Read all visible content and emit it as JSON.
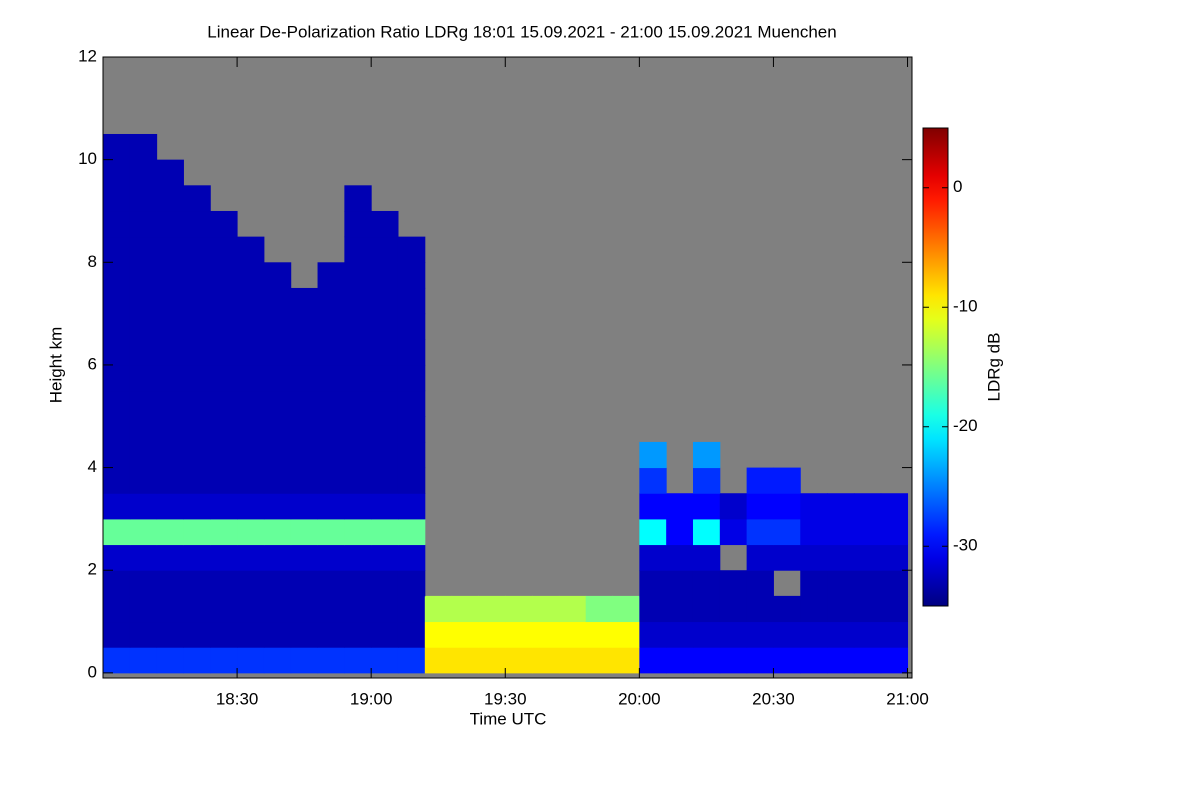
{
  "chart_data": {
    "type": "heatmap",
    "title": "Linear De-Polarization Ratio LDRg   18:01 15.09.2021 - 21:00 15.09.2021 Muenchen",
    "xlabel": "Time UTC",
    "ylabel": "Height km",
    "colorbar_label": "LDRg dB",
    "xlim": [
      0,
      181
    ],
    "xticks": [
      {
        "value": 30,
        "label": "18:30"
      },
      {
        "value": 60,
        "label": "19:00"
      },
      {
        "value": 90,
        "label": "19:30"
      },
      {
        "value": 120,
        "label": "20:00"
      },
      {
        "value": 150,
        "label": "20:30"
      },
      {
        "value": 180,
        "label": "21:00"
      }
    ],
    "ylim": [
      -0.1,
      12
    ],
    "yticks": [
      0,
      2,
      4,
      6,
      8,
      10,
      12
    ],
    "clim": [
      -35,
      5
    ],
    "cticks": [
      -30,
      -20,
      -10,
      0
    ],
    "colormap": "jet",
    "missing_color": "#808080",
    "xbins": [
      0,
      6,
      12,
      18,
      24,
      30,
      36,
      42,
      48,
      54,
      60,
      66,
      72,
      78,
      84,
      90,
      96,
      102,
      108,
      114,
      120,
      126,
      132,
      138,
      144,
      150,
      156,
      162,
      168,
      174,
      180
    ],
    "ybins": [
      0,
      0.5,
      1,
      1.5,
      2,
      2.5,
      3,
      3.5,
      4,
      4.5,
      5,
      5.5,
      6,
      6.5,
      7,
      7.5,
      8,
      8.5,
      9,
      9.5,
      10,
      10.5,
      11,
      11.5,
      12
    ],
    "z": [
      [
        -28,
        -28,
        -28,
        -28,
        -28,
        -28,
        -28,
        -28,
        -28,
        -28,
        -28,
        -28,
        -9,
        -9,
        -9,
        -9,
        -9,
        -9,
        -9,
        -9,
        -30,
        -30,
        -30,
        -30,
        -30,
        -30,
        -30,
        -30,
        -30,
        -30
      ],
      [
        -33,
        -33,
        -33,
        -33,
        -33,
        -33,
        -33,
        -33,
        -33,
        -33,
        -33,
        -33,
        -10,
        -10,
        -10,
        -10,
        -10,
        -10,
        -10,
        -10,
        -32,
        -32,
        -32,
        -32,
        -32,
        -32,
        -32,
        -32,
        -32,
        -32
      ],
      [
        -33,
        -33,
        -33,
        -33,
        -33,
        -33,
        -33,
        -33,
        -33,
        -33,
        -33,
        -33,
        -13,
        -13,
        -13,
        -13,
        -13,
        -13,
        -15,
        -15,
        -33,
        -33,
        -33,
        -33,
        -33,
        -33,
        -33,
        -33,
        -33,
        -33
      ],
      [
        -33,
        -33,
        -33,
        -33,
        -33,
        -33,
        -33,
        -33,
        -33,
        -33,
        -33,
        -33,
        null,
        null,
        null,
        null,
        null,
        null,
        null,
        null,
        -33,
        -33,
        -33,
        -33,
        -33,
        null,
        -33,
        -33,
        -33,
        -33
      ],
      [
        -32,
        -32,
        -32,
        -32,
        -32,
        -32,
        -32,
        -32,
        -32,
        -32,
        -32,
        -32,
        null,
        null,
        null,
        null,
        null,
        null,
        null,
        null,
        -32,
        -32,
        -32,
        null,
        -32,
        -32,
        -32,
        -32,
        -32,
        -32
      ],
      [
        -16,
        -16,
        -16,
        -16,
        -16,
        -16,
        -16,
        -16,
        -16,
        -16,
        -16,
        -16,
        null,
        null,
        null,
        null,
        null,
        null,
        null,
        null,
        -20,
        -30,
        -20,
        -31,
        -28,
        -28,
        -31,
        -31,
        -31,
        -31
      ],
      [
        -32,
        -32,
        -32,
        -32,
        -32,
        -32,
        -32,
        -32,
        -32,
        -32,
        -32,
        -32,
        null,
        null,
        null,
        null,
        null,
        null,
        null,
        null,
        -30,
        -30,
        -30,
        -32,
        -30,
        -30,
        -31,
        -31,
        -31,
        -31
      ],
      [
        -33,
        -33,
        -33,
        -33,
        -33,
        -33,
        -33,
        -33,
        -33,
        -33,
        -33,
        -33,
        null,
        null,
        null,
        null,
        null,
        null,
        null,
        null,
        -28,
        null,
        -28,
        null,
        -29,
        -29,
        null,
        null,
        null,
        null
      ],
      [
        -33,
        -33,
        -33,
        -33,
        -33,
        -33,
        -33,
        -33,
        -33,
        -33,
        -33,
        -33,
        null,
        null,
        null,
        null,
        null,
        null,
        null,
        null,
        -24,
        null,
        -24,
        null,
        null,
        null,
        null,
        null,
        null,
        null
      ],
      [
        -33,
        -33,
        -33,
        -33,
        -33,
        -33,
        -33,
        -33,
        -33,
        -33,
        -33,
        -33,
        null,
        null,
        null,
        null,
        null,
        null,
        null,
        null,
        null,
        null,
        null,
        null,
        null,
        null,
        null,
        null,
        null,
        null
      ],
      [
        -33,
        -33,
        -33,
        -33,
        -33,
        -33,
        -33,
        -33,
        -33,
        -33,
        -33,
        -33,
        null,
        null,
        null,
        null,
        null,
        null,
        null,
        null,
        null,
        null,
        null,
        null,
        null,
        null,
        null,
        null,
        null,
        null
      ],
      [
        -33,
        -33,
        -33,
        -33,
        -33,
        -33,
        -33,
        -33,
        -33,
        -33,
        -33,
        -33,
        null,
        null,
        null,
        null,
        null,
        null,
        null,
        null,
        null,
        null,
        null,
        null,
        null,
        null,
        null,
        null,
        null,
        null
      ],
      [
        -33,
        -33,
        -33,
        -33,
        -33,
        -33,
        -33,
        -33,
        -33,
        -33,
        -33,
        -33,
        null,
        null,
        null,
        null,
        null,
        null,
        null,
        null,
        null,
        null,
        null,
        null,
        null,
        null,
        null,
        null,
        null,
        null
      ],
      [
        -33,
        -33,
        -33,
        -33,
        -33,
        -33,
        -33,
        -33,
        -33,
        -33,
        -33,
        -33,
        null,
        null,
        null,
        null,
        null,
        null,
        null,
        null,
        null,
        null,
        null,
        null,
        null,
        null,
        null,
        null,
        null,
        null
      ],
      [
        -33,
        -33,
        -33,
        -33,
        -33,
        -33,
        -33,
        -33,
        -33,
        -33,
        -33,
        -33,
        null,
        null,
        null,
        null,
        null,
        null,
        null,
        null,
        null,
        null,
        null,
        null,
        null,
        null,
        null,
        null,
        null,
        null
      ],
      [
        -33,
        -33,
        -33,
        -33,
        -33,
        -33,
        -33,
        null,
        -33,
        -33,
        -33,
        -33,
        null,
        null,
        null,
        null,
        null,
        null,
        null,
        null,
        null,
        null,
        null,
        null,
        null,
        null,
        null,
        null,
        null,
        null
      ],
      [
        -33,
        -33,
        -33,
        -33,
        -33,
        -33,
        null,
        null,
        null,
        -33,
        -33,
        -33,
        null,
        null,
        null,
        null,
        null,
        null,
        null,
        null,
        null,
        null,
        null,
        null,
        null,
        null,
        null,
        null,
        null,
        null
      ],
      [
        -33,
        -33,
        -33,
        -33,
        -33,
        null,
        null,
        null,
        null,
        -33,
        -33,
        null,
        null,
        null,
        null,
        null,
        null,
        null,
        null,
        null,
        null,
        null,
        null,
        null,
        null,
        null,
        null,
        null,
        null,
        null
      ],
      [
        -33,
        -33,
        -33,
        -33,
        null,
        null,
        null,
        null,
        null,
        -33,
        null,
        null,
        null,
        null,
        null,
        null,
        null,
        null,
        null,
        null,
        null,
        null,
        null,
        null,
        null,
        null,
        null,
        null,
        null,
        null
      ],
      [
        -33,
        -33,
        -33,
        null,
        null,
        null,
        null,
        null,
        null,
        null,
        null,
        null,
        null,
        null,
        null,
        null,
        null,
        null,
        null,
        null,
        null,
        null,
        null,
        null,
        null,
        null,
        null,
        null,
        null,
        null
      ],
      [
        -33,
        -33,
        null,
        null,
        null,
        null,
        null,
        null,
        null,
        null,
        null,
        null,
        null,
        null,
        null,
        null,
        null,
        null,
        null,
        null,
        null,
        null,
        null,
        null,
        null,
        null,
        null,
        null,
        null,
        null
      ],
      [
        null,
        null,
        null,
        null,
        null,
        null,
        null,
        null,
        null,
        null,
        null,
        null,
        null,
        null,
        null,
        null,
        null,
        null,
        null,
        null,
        null,
        null,
        null,
        null,
        null,
        null,
        null,
        null,
        null,
        null
      ],
      [
        null,
        null,
        null,
        null,
        null,
        null,
        null,
        null,
        null,
        null,
        null,
        null,
        null,
        null,
        null,
        null,
        null,
        null,
        null,
        null,
        null,
        null,
        null,
        null,
        null,
        null,
        null,
        null,
        null,
        null
      ],
      [
        null,
        null,
        null,
        null,
        null,
        null,
        null,
        null,
        null,
        null,
        null,
        null,
        null,
        null,
        null,
        null,
        null,
        null,
        null,
        null,
        null,
        null,
        null,
        null,
        null,
        null,
        null,
        null,
        null,
        null
      ]
    ]
  }
}
